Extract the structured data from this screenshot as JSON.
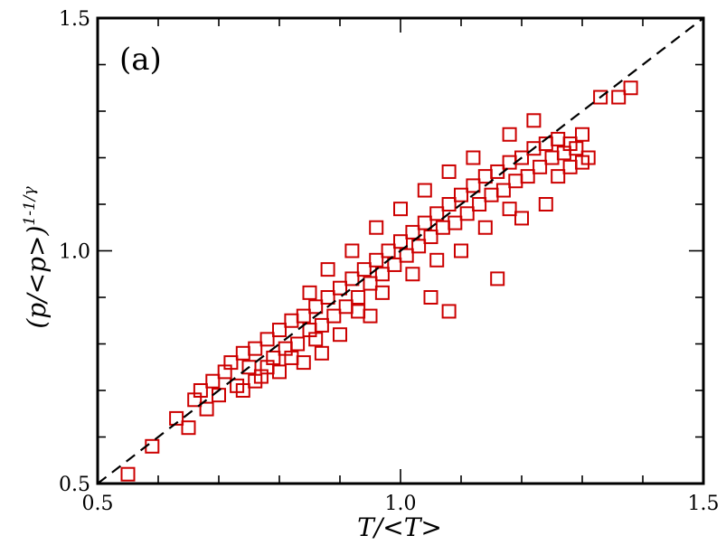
{
  "chart_data": {
    "type": "scatter",
    "panel_label": "(a)",
    "xlabel": "T/<T>",
    "ylabel": "(p/<p>)",
    "ylabel_exponent": "1-1/γ",
    "xlim": [
      0.5,
      1.5
    ],
    "ylim": [
      0.5,
      1.5
    ],
    "x_ticks": [
      0.5,
      1.0,
      1.5
    ],
    "x_tick_labels": [
      "0.5",
      "1.0",
      "1.5"
    ],
    "y_ticks": [
      0.5,
      1.0,
      1.5
    ],
    "y_tick_labels": [
      "0.5",
      "1.0",
      "1.5"
    ],
    "grid": false,
    "marker": "open-square",
    "marker_color": "#cc0000",
    "reference_line": {
      "style": "dashed",
      "color": "#000000",
      "x": [
        0.5,
        1.5
      ],
      "y": [
        0.5,
        1.5
      ]
    },
    "series": [
      {
        "points": [
          [
            0.55,
            0.52
          ],
          [
            0.59,
            0.58
          ],
          [
            0.63,
            0.64
          ],
          [
            0.65,
            0.62
          ],
          [
            0.66,
            0.68
          ],
          [
            0.67,
            0.7
          ],
          [
            0.68,
            0.66
          ],
          [
            0.69,
            0.72
          ],
          [
            0.7,
            0.69
          ],
          [
            0.71,
            0.74
          ],
          [
            0.72,
            0.76
          ],
          [
            0.73,
            0.71
          ],
          [
            0.74,
            0.78
          ],
          [
            0.75,
            0.75
          ],
          [
            0.76,
            0.79
          ],
          [
            0.77,
            0.73
          ],
          [
            0.78,
            0.81
          ],
          [
            0.79,
            0.77
          ],
          [
            0.8,
            0.83
          ],
          [
            0.81,
            0.79
          ],
          [
            0.82,
            0.85
          ],
          [
            0.83,
            0.8
          ],
          [
            0.84,
            0.86
          ],
          [
            0.85,
            0.83
          ],
          [
            0.86,
            0.88
          ],
          [
            0.87,
            0.84
          ],
          [
            0.88,
            0.9
          ],
          [
            0.89,
            0.86
          ],
          [
            0.9,
            0.92
          ],
          [
            0.91,
            0.88
          ],
          [
            0.92,
            0.94
          ],
          [
            0.93,
            0.9
          ],
          [
            0.94,
            0.96
          ],
          [
            0.95,
            0.93
          ],
          [
            0.96,
            0.98
          ],
          [
            0.97,
            0.95
          ],
          [
            0.98,
            1.0
          ],
          [
            0.99,
            0.97
          ],
          [
            1.0,
            1.02
          ],
          [
            1.01,
            0.99
          ],
          [
            1.02,
            1.04
          ],
          [
            1.03,
            1.01
          ],
          [
            1.04,
            1.06
          ],
          [
            1.05,
            1.03
          ],
          [
            1.06,
            1.08
          ],
          [
            1.07,
            1.05
          ],
          [
            1.08,
            1.1
          ],
          [
            1.09,
            1.06
          ],
          [
            1.1,
            1.12
          ],
          [
            1.11,
            1.08
          ],
          [
            1.12,
            1.14
          ],
          [
            1.13,
            1.1
          ],
          [
            1.14,
            1.16
          ],
          [
            1.15,
            1.12
          ],
          [
            1.16,
            1.17
          ],
          [
            1.17,
            1.13
          ],
          [
            1.18,
            1.19
          ],
          [
            1.19,
            1.15
          ],
          [
            1.2,
            1.2
          ],
          [
            1.21,
            1.16
          ],
          [
            1.22,
            1.22
          ],
          [
            1.23,
            1.18
          ],
          [
            1.24,
            1.23
          ],
          [
            1.25,
            1.2
          ],
          [
            1.26,
            1.24
          ],
          [
            1.27,
            1.21
          ],
          [
            1.28,
            1.23
          ],
          [
            1.29,
            1.22
          ],
          [
            1.3,
            1.25
          ],
          [
            1.31,
            1.2
          ],
          [
            1.33,
            1.33
          ],
          [
            1.36,
            1.33
          ],
          [
            1.38,
            1.35
          ],
          [
            0.8,
            0.74
          ],
          [
            0.84,
            0.76
          ],
          [
            0.87,
            0.78
          ],
          [
            0.9,
            0.82
          ],
          [
            0.95,
            0.86
          ],
          [
            1.05,
            0.9
          ],
          [
            1.08,
            0.87
          ],
          [
            1.16,
            0.94
          ],
          [
            1.2,
            1.07
          ],
          [
            1.24,
            1.1
          ],
          [
            1.1,
            1.0
          ],
          [
            0.85,
            0.91
          ],
          [
            0.88,
            0.96
          ],
          [
            0.92,
            1.0
          ],
          [
            0.96,
            1.05
          ],
          [
            1.0,
            1.09
          ],
          [
            1.04,
            1.13
          ],
          [
            1.08,
            1.17
          ],
          [
            1.12,
            1.2
          ],
          [
            1.18,
            1.25
          ],
          [
            1.22,
            1.28
          ],
          [
            0.74,
            0.7
          ],
          [
            0.76,
            0.72
          ],
          [
            0.78,
            0.75
          ],
          [
            0.82,
            0.77
          ],
          [
            0.86,
            0.81
          ],
          [
            0.93,
            0.87
          ],
          [
            0.97,
            0.91
          ],
          [
            1.02,
            0.95
          ],
          [
            1.06,
            0.98
          ],
          [
            1.14,
            1.05
          ],
          [
            1.18,
            1.09
          ],
          [
            1.26,
            1.16
          ],
          [
            1.28,
            1.18
          ],
          [
            1.3,
            1.19
          ]
        ]
      }
    ]
  }
}
